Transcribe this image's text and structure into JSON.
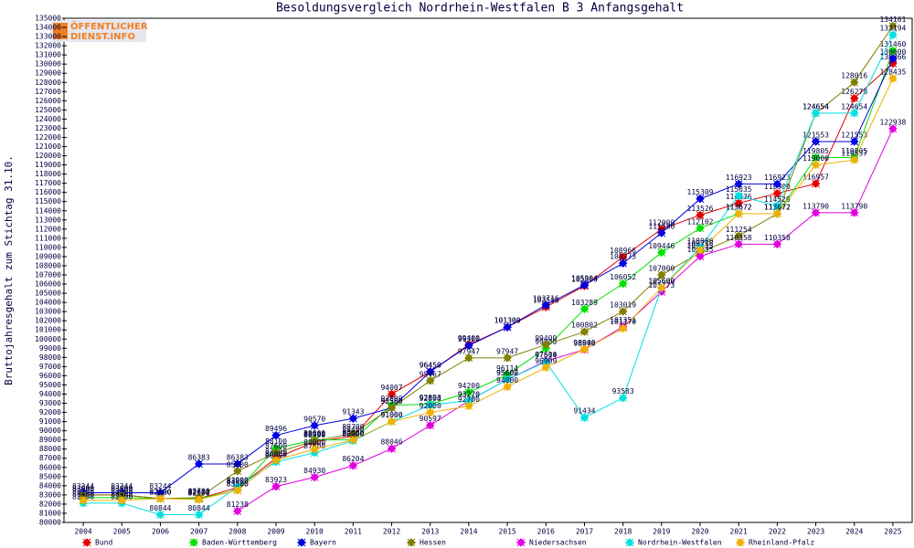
{
  "chart_data": {
    "type": "line",
    "title": "Besoldungsvergleich Nordrhein-Westfalen B 3 Anfangsgehalt",
    "logo": [
      "ÖFFENTLICHER",
      "DIENST.INFO"
    ],
    "y_label": "Bruttojahresgehalt zum Stichtag 31.10.",
    "categories": [
      "2004",
      "2005",
      "2006",
      "2007",
      "2008",
      "2009",
      "2010",
      "2011",
      "2012",
      "2013",
      "2014",
      "2015",
      "2016",
      "2017",
      "2018",
      "2019",
      "2020",
      "2021",
      "2022",
      "2023",
      "2024",
      "2025"
    ],
    "ylim": [
      80000,
      135000
    ],
    "yticks": [
      80000,
      81000,
      82000,
      83000,
      84000,
      85000,
      86000,
      87000,
      88000,
      89000,
      90000,
      91000,
      92000,
      93000,
      94000,
      95000,
      96000,
      97000,
      98000,
      99000,
      100000,
      101000,
      102000,
      103000,
      104000,
      105000,
      106000,
      107000,
      108000,
      109000,
      110000,
      111000,
      112000,
      113000,
      114000,
      115000,
      116000,
      117000,
      118000,
      119000,
      120000,
      121000,
      122000,
      123000,
      124000,
      125000,
      126000,
      127000,
      128000,
      129000,
      130000,
      131000,
      132000,
      133000,
      134000,
      135000
    ],
    "grid": false,
    "series": [
      {
        "name": "Bund",
        "color": "#e00000",
        "values": [
          83000,
          83000,
          82600,
          82600,
          83800,
          87000,
          88800,
          89400,
          94007,
          96450,
          99400,
          101300,
          103500,
          105800,
          108966,
          112000,
          113526,
          114836,
          115900,
          116957,
          126278,
          130066
        ]
      },
      {
        "name": "Baden-Württemberg",
        "color": "#00e000",
        "values": [
          82700,
          82700,
          82600,
          82600,
          83500,
          88100,
          89000,
          89000,
          92800,
          92893,
          94200,
          96114,
          99000,
          103289,
          106052,
          109446,
          112102,
          113672,
          113672,
          119805,
          119805,
          131460
        ]
      },
      {
        "name": "Bayern",
        "color": "#0000e0",
        "values": [
          83244,
          83244,
          83244,
          86383,
          86383,
          89496,
          90570,
          91343,
          92500,
          96450,
          99300,
          101300,
          103716,
          105904,
          108273,
          111580,
          115309,
          116923,
          116923,
          121553,
          121553,
          130600
        ]
      },
      {
        "name": "Hessen",
        "color": "#808000",
        "values": [
          83000,
          83000,
          82600,
          82700,
          85600,
          87600,
          88900,
          89700,
          92500,
          95467,
          97947,
          97947,
          99400,
          100802,
          103019,
          107000,
          109435,
          111254,
          113672,
          124654,
          128016,
          134161
        ]
      },
      {
        "name": "Niedersachsen",
        "color": "#e000e0",
        "values": [
          null,
          null,
          null,
          null,
          81238,
          83923,
          84930,
          86204,
          88046,
          90597,
          93270,
          95600,
          97600,
          98848,
          101351,
          105173,
          109035,
          110358,
          110358,
          113790,
          113790,
          122938
        ]
      },
      {
        "name": "Nordrhein-Westfalen",
        "color": "#00e0e0",
        "values": [
          82100,
          82100,
          80844,
          80844,
          83900,
          86600,
          87600,
          88900,
          91000,
          92800,
          93270,
          95602,
          97514,
          91434,
          93583,
          105600,
          110000,
          115635,
          114529,
          124654,
          124654,
          133194
        ]
      },
      {
        "name": "Rheinland-Pfalz",
        "color": "#f0b000",
        "values": [
          82400,
          82400,
          82600,
          82500,
          83500,
          86800,
          88000,
          89000,
          91000,
          92000,
          92700,
          94800,
          96909,
          98900,
          101170,
          105600,
          109718,
          113672,
          113672,
          119000,
          119537,
          128435
        ]
      }
    ]
  }
}
